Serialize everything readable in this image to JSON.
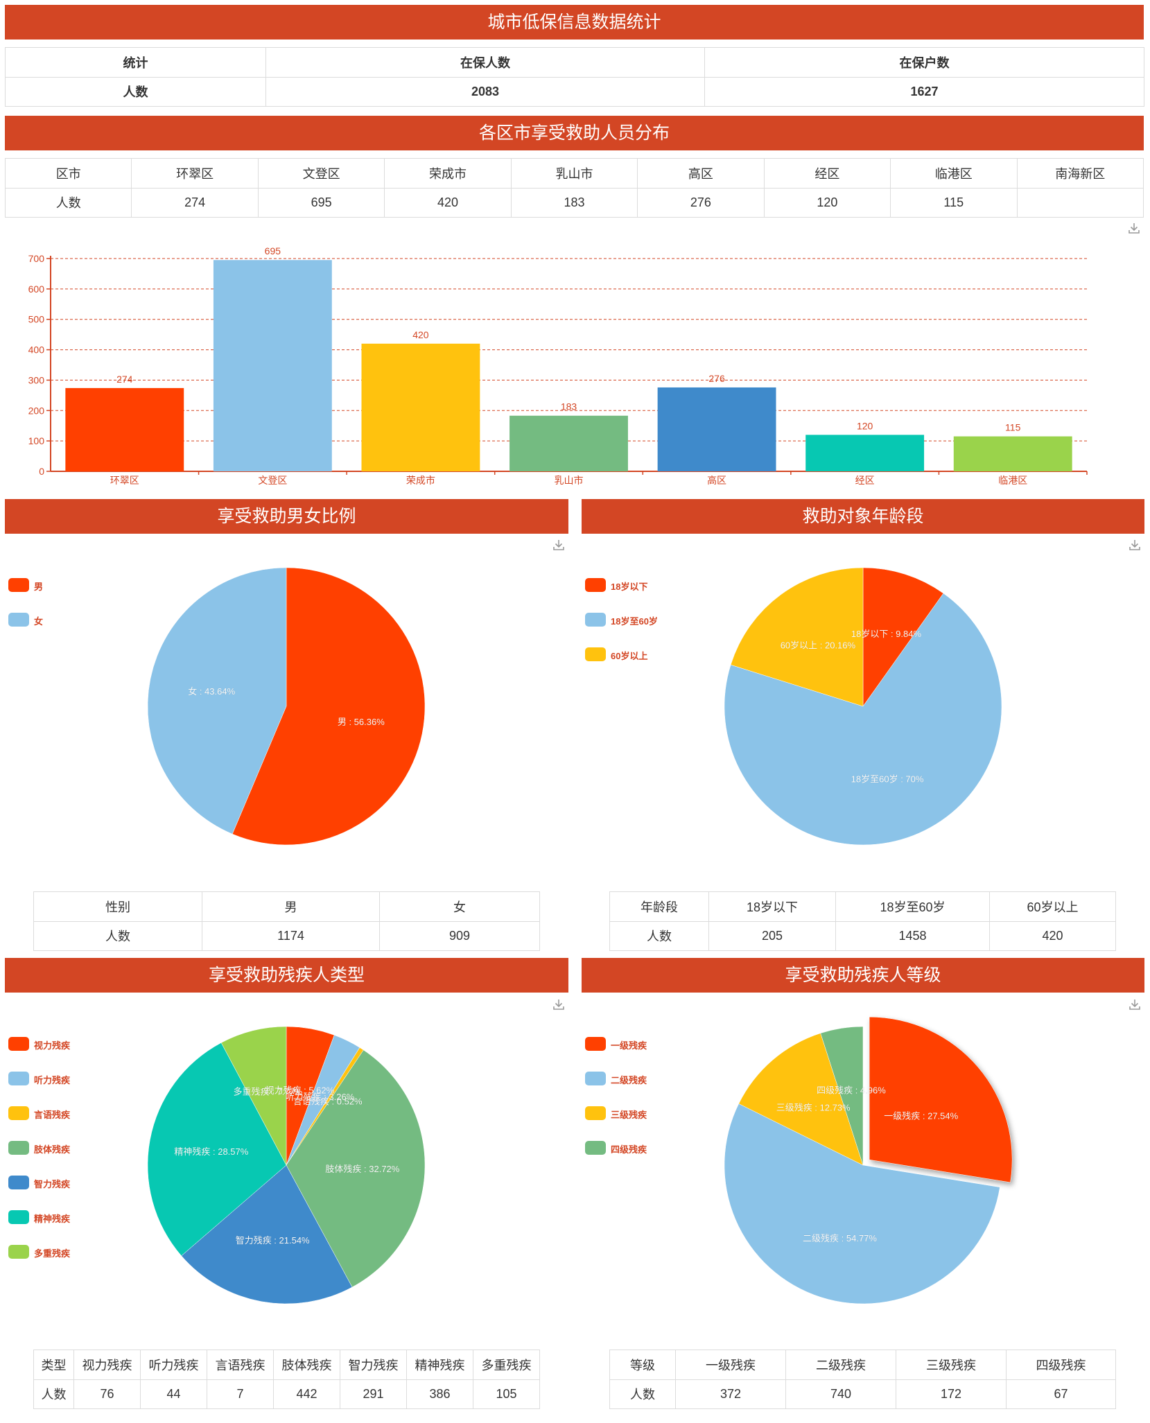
{
  "header": {
    "title": "城市低保信息数据统计",
    "stats": {
      "headers": [
        "统计",
        "在保人数",
        "在保户数"
      ],
      "row": [
        "人数",
        "2083",
        "1627"
      ]
    }
  },
  "districts": {
    "title": "各区市享受救助人员分布",
    "headers": [
      "区市",
      "环翠区",
      "文登区",
      "荣成市",
      "乳山市",
      "高区",
      "经区",
      "临港区",
      "南海新区"
    ],
    "row": [
      "人数",
      "274",
      "695",
      "420",
      "183",
      "276",
      "120",
      "115",
      ""
    ]
  },
  "gender": {
    "title": "享受救助男女比例",
    "headers": [
      "性别",
      "男",
      "女"
    ],
    "row": [
      "人数",
      "1174",
      "909"
    ]
  },
  "age": {
    "title": "救助对象年龄段",
    "headers": [
      "年龄段",
      "18岁以下",
      "18岁至60岁",
      "60岁以上"
    ],
    "row": [
      "人数",
      "205",
      "1458",
      "420"
    ]
  },
  "disability_type": {
    "title": "享受救助残疾人类型",
    "headers": [
      "类型",
      "视力残疾",
      "听力残疾",
      "言语残疾",
      "肢体残疾",
      "智力残疾",
      "精神残疾",
      "多重残疾"
    ],
    "row": [
      "人数",
      "76",
      "44",
      "7",
      "442",
      "291",
      "386",
      "105"
    ]
  },
  "disability_level": {
    "title": "享受救助残疾人等级",
    "headers": [
      "等级",
      "一级残疾",
      "二级残疾",
      "三级残疾",
      "四级残疾"
    ],
    "row": [
      "人数",
      "372",
      "740",
      "172",
      "67"
    ]
  },
  "icons": {
    "download": "download-icon"
  },
  "colors": {
    "banner": "#d34624",
    "axis": "#d34624",
    "palette": [
      "#ff4000",
      "#8bc3e8",
      "#ffc20e",
      "#74bb81",
      "#3f8acb",
      "#07c8b2",
      "#9ad34b"
    ]
  },
  "chart_data": [
    {
      "type": "bar",
      "categories": [
        "环翠区",
        "文登区",
        "荣成市",
        "乳山市",
        "高区",
        "经区",
        "临港区"
      ],
      "values": [
        274,
        695,
        420,
        183,
        276,
        120,
        115
      ],
      "ylim": [
        0,
        700
      ],
      "yticks": [
        "0",
        "100",
        "200",
        "300",
        "400",
        "500",
        "600",
        "700"
      ],
      "grid": true,
      "value_labels": [
        "274",
        "695",
        "420",
        "183",
        "276",
        "120",
        "115"
      ]
    },
    {
      "type": "pie",
      "labels": [
        "男",
        "女"
      ],
      "values": [
        1174,
        909
      ],
      "slice_labels": [
        "男 : 56.36%",
        "女 : 43.64%"
      ],
      "legend": "left"
    },
    {
      "type": "pie",
      "labels": [
        "18岁以下",
        "18岁至60岁",
        "60岁以上"
      ],
      "values": [
        205,
        1458,
        420
      ],
      "slice_labels": [
        "18岁以下 : 9.84%",
        "18岁至60岁 : 70%",
        "60岁以上 : 20.16%"
      ],
      "legend": "left"
    },
    {
      "type": "pie",
      "labels": [
        "视力残疾",
        "听力残疾",
        "言语残疾",
        "肢体残疾",
        "智力残疾",
        "精神残疾",
        "多重残疾"
      ],
      "values": [
        76,
        44,
        7,
        442,
        291,
        386,
        105
      ],
      "slice_labels": [
        "视力残疾 : 5.62%",
        "听力残疾 : 3.26%",
        "言语残疾 : 0.52%",
        "肢体残疾 : 32.72%",
        "智力残疾 : 21.54%",
        "精神残疾 : 28.57%",
        "多重残疾 : 7.77%"
      ],
      "legend": "left"
    },
    {
      "type": "pie",
      "labels": [
        "一级残疾",
        "二级残疾",
        "三级残疾",
        "四级残疾"
      ],
      "values": [
        372,
        740,
        172,
        67
      ],
      "slice_labels": [
        "一级残疾 : 27.54%",
        "二级残疾 : 54.77%",
        "三级残疾 : 12.73%",
        "四级残疾 : 4.96%"
      ],
      "highlighted": "一级残疾",
      "legend": "left"
    }
  ]
}
